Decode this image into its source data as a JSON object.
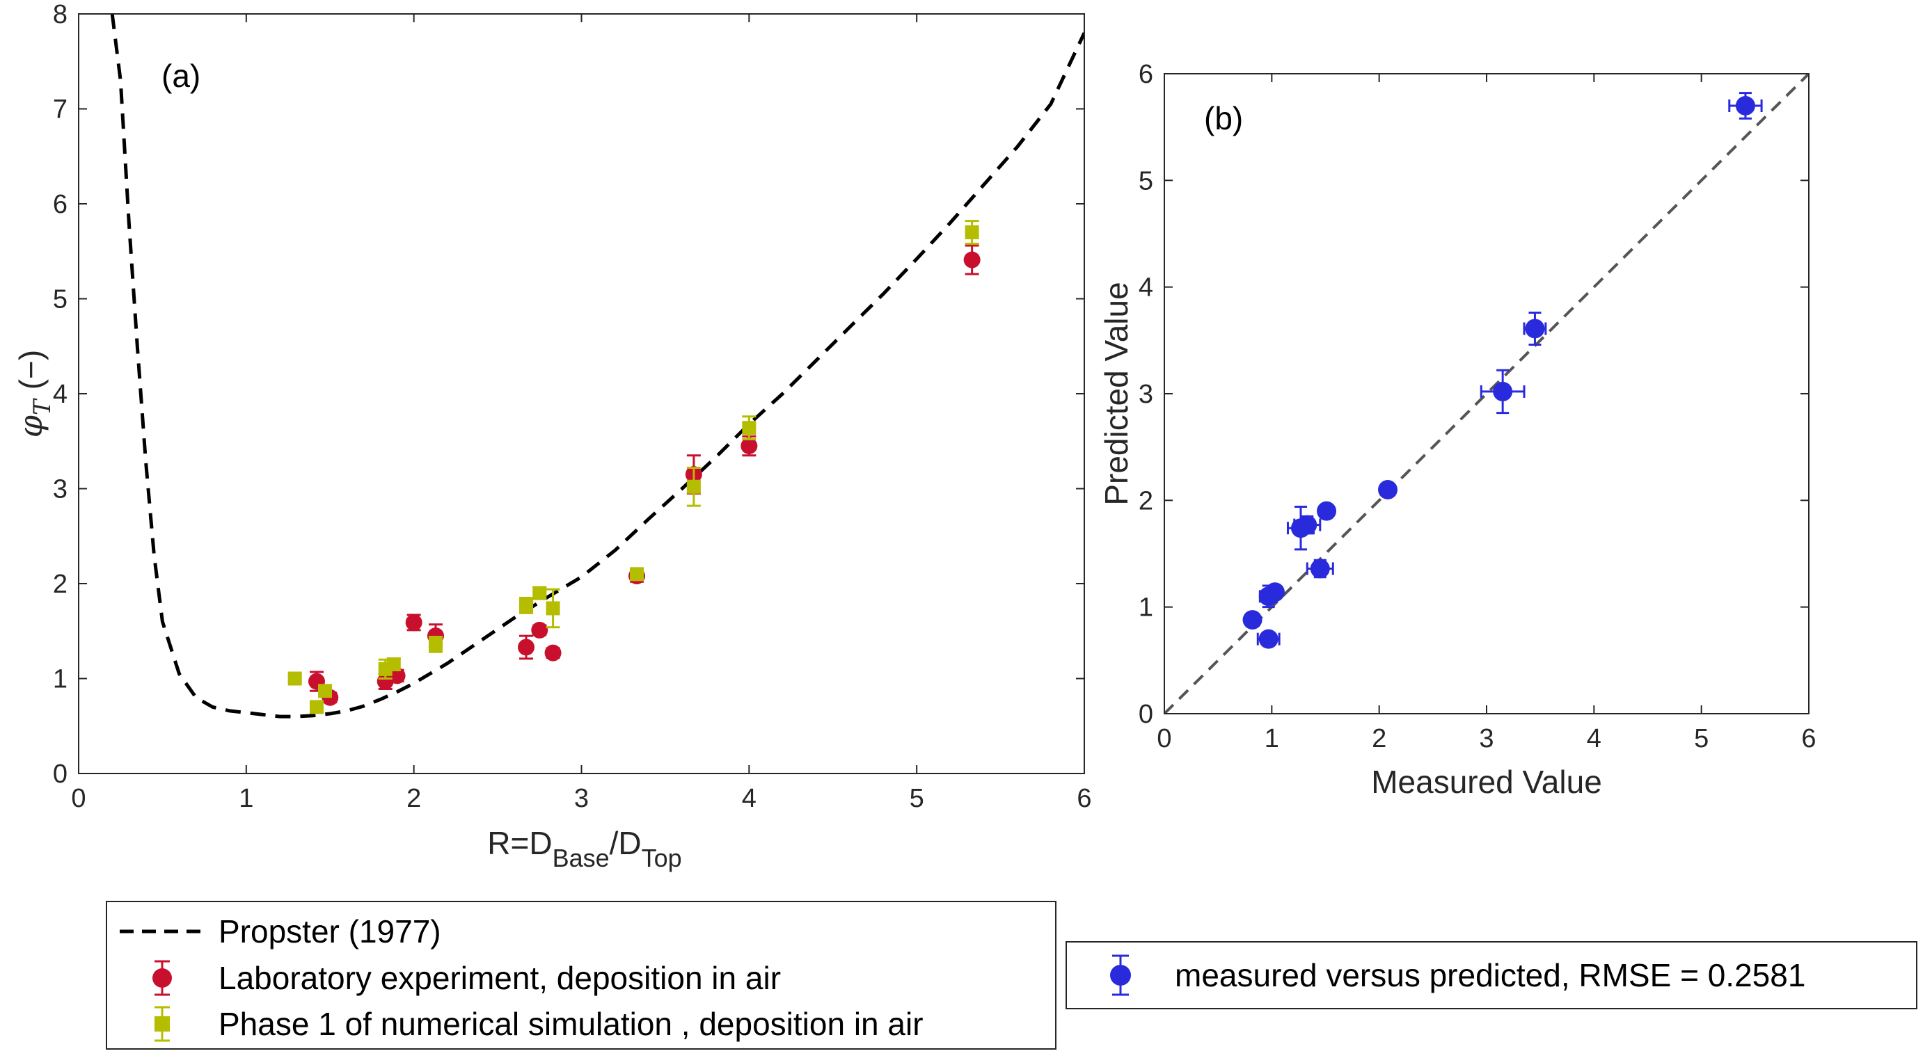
{
  "chart_data": [
    {
      "type": "scatter",
      "panel_label": "(a)",
      "xlabel": {
        "main": "R=D",
        "sub1": "Base",
        "mid": "/D",
        "sub2": "Top"
      },
      "ylabel": {
        "symbol": "φ",
        "sub": "T",
        "unit": "(−)"
      },
      "xlim": [
        0,
        6
      ],
      "ylim": [
        0,
        8
      ],
      "xticks": [
        0,
        1,
        2,
        3,
        4,
        5,
        6
      ],
      "yticks": [
        0,
        1,
        2,
        3,
        4,
        5,
        6,
        7,
        8
      ],
      "grid": false,
      "legend_position": "below",
      "series": [
        {
          "name": "Propster (1977)",
          "kind": "dashed-line",
          "color": "#000000",
          "x": [
            0.2,
            0.25,
            0.3,
            0.35,
            0.4,
            0.45,
            0.5,
            0.6,
            0.7,
            0.8,
            0.9,
            1.0,
            1.1,
            1.2,
            1.3,
            1.4,
            1.5,
            1.6,
            1.7,
            1.8,
            1.9,
            2.0,
            2.2,
            2.4,
            2.6,
            2.8,
            3.0,
            3.2,
            3.4,
            3.6,
            3.8,
            4.0,
            4.2,
            4.4,
            4.6,
            4.8,
            5.0,
            5.2,
            5.4,
            5.6,
            5.8,
            6.0
          ],
          "y": [
            8.0,
            7.3,
            5.8,
            4.5,
            3.3,
            2.3,
            1.6,
            1.05,
            0.8,
            0.7,
            0.66,
            0.64,
            0.62,
            0.6,
            0.6,
            0.61,
            0.63,
            0.66,
            0.71,
            0.78,
            0.86,
            0.95,
            1.16,
            1.4,
            1.64,
            1.86,
            2.07,
            2.35,
            2.68,
            3.0,
            3.33,
            3.68,
            4.0,
            4.35,
            4.7,
            5.05,
            5.42,
            5.8,
            6.2,
            6.6,
            7.05,
            7.8
          ]
        },
        {
          "name": "Laboratory experiment, deposition in air",
          "kind": "circle",
          "color": "#c8102e",
          "x": [
            1.42,
            1.5,
            1.83,
            1.9,
            2.0,
            2.13,
            2.67,
            2.75,
            2.83,
            3.33,
            3.67,
            4.0,
            5.33
          ],
          "y": [
            0.97,
            0.8,
            0.97,
            1.03,
            1.59,
            1.45,
            1.33,
            1.51,
            1.27,
            2.08,
            3.15,
            3.45,
            5.41
          ],
          "err": [
            0.1,
            0.05,
            0.08,
            0.06,
            0.08,
            0.12,
            0.12,
            0.05,
            0.05,
            0.06,
            0.2,
            0.1,
            0.15
          ]
        },
        {
          "name": "Phase 1 of numerical simulation , deposition in air",
          "kind": "square",
          "color": "#b5bd00",
          "x": [
            1.29,
            1.42,
            1.47,
            1.83,
            1.88,
            2.13,
            2.67,
            2.75,
            2.83,
            3.33,
            3.67,
            4.0,
            5.33
          ],
          "y": [
            1.0,
            0.7,
            0.87,
            1.1,
            1.15,
            1.36,
            1.77,
            1.9,
            1.74,
            2.1,
            3.02,
            3.64,
            5.7
          ],
          "err": [
            0.03,
            0.05,
            0.05,
            0.1,
            0.06,
            0.08,
            0.08,
            0.06,
            0.2,
            0.04,
            0.2,
            0.12,
            0.12
          ]
        }
      ]
    },
    {
      "type": "scatter",
      "panel_label": "(b)",
      "xlabel": "Measured Value",
      "ylabel": "Predicted Value",
      "xlim": [
        0,
        6
      ],
      "ylim": [
        0,
        6
      ],
      "xticks": [
        0,
        1,
        2,
        3,
        4,
        5,
        6
      ],
      "yticks": [
        0,
        1,
        2,
        3,
        4,
        5,
        6
      ],
      "grid": false,
      "reference_line": {
        "kind": "dashed-diagonal",
        "color": "#555555",
        "from": [
          0,
          0
        ],
        "to": [
          6,
          6
        ]
      },
      "legend_position": "below",
      "series": [
        {
          "name": "measured versus predicted, RMSE = 0.2581",
          "kind": "circle",
          "color": "#2a2add",
          "x": [
            0.82,
            0.97,
            0.97,
            1.03,
            1.27,
            1.33,
            1.45,
            1.51,
            2.08,
            3.15,
            3.45,
            5.41
          ],
          "y": [
            0.88,
            0.7,
            1.1,
            1.14,
            1.74,
            1.77,
            1.36,
            1.9,
            2.1,
            3.02,
            3.61,
            5.7
          ],
          "xerr": [
            0.0,
            0.1,
            0.08,
            0.06,
            0.12,
            0.12,
            0.12,
            0.06,
            0.06,
            0.2,
            0.1,
            0.15
          ],
          "yerr": [
            0.0,
            0.06,
            0.1,
            0.06,
            0.2,
            0.08,
            0.08,
            0.06,
            0.04,
            0.2,
            0.15,
            0.12
          ]
        }
      ]
    }
  ]
}
